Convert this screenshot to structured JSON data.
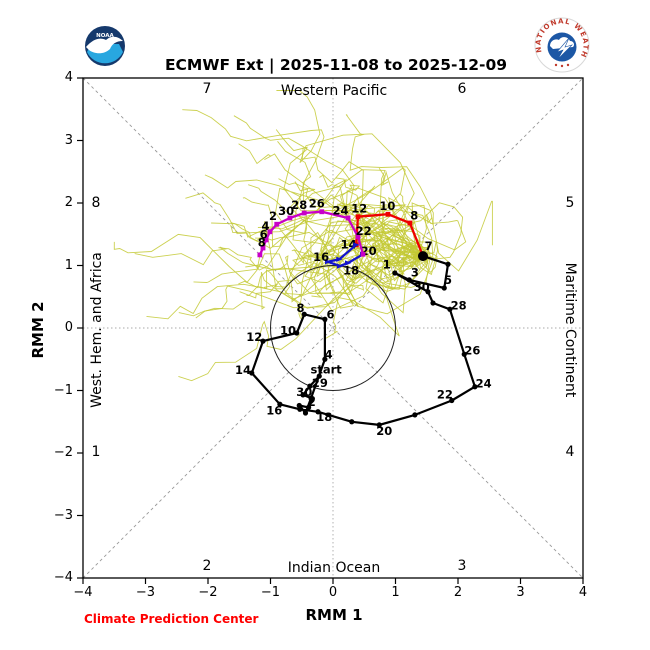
{
  "header": {
    "title": "ECMWF Ext | 2025-11-08 to 2025-12-09",
    "noaa_alt": "NOAA",
    "nws_text": "NATIONAL WEATHER SERVICE"
  },
  "footer": {
    "credit": "Climate Prediction Center",
    "credit_color": "#ff0000"
  },
  "regions": {
    "top": "Western Pacific",
    "bottom": "Indian Ocean",
    "left": "West. Hem. and Africa",
    "right": "Maritime Continent"
  },
  "phases": {
    "top_left": "7",
    "top_right": "6",
    "left_top": "8",
    "left_bottom": "1",
    "right_top": "5",
    "right_bottom": "4",
    "bottom_left": "2",
    "bottom_right": "3"
  },
  "chart_data": {
    "type": "line",
    "title": "ECMWF Ext | 2025-11-08 to 2025-12-09",
    "xlabel": "RMM 1",
    "ylabel": "RMM 2",
    "xlim": [
      -4,
      4
    ],
    "ylim": [
      -4,
      4
    ],
    "ticks": [
      -4,
      -3,
      -2,
      -1,
      0,
      1,
      2,
      3,
      4
    ],
    "unit_circle_radius": 1,
    "grid": "diagonal and zero dashed guides",
    "legend": "none",
    "annotations": [
      {
        "text": "start",
        "x": -0.11,
        "y": -0.66
      }
    ],
    "colors": {
      "observed": "#000000",
      "week1": "#ee0000",
      "week2": "#1414cc",
      "weeks3plus": "#c800c8",
      "ensemble": "#c3c934"
    },
    "series": [
      {
        "name": "observed",
        "color": "#000000",
        "marker": "dot",
        "width": 2.2,
        "points": [
          {
            "x": -0.22,
            "y": -0.77,
            "l": "29",
            "lx": -0.21,
            "ly": -0.88
          },
          {
            "x": -0.37,
            "y": -0.93
          },
          {
            "x": -0.48,
            "y": -1.07,
            "l": "30",
            "lx": -0.46,
            "ly": -1.02
          },
          {
            "x": -0.33,
            "y": -1.13
          },
          {
            "x": -0.39,
            "y": -1.27,
            "l": "2",
            "lx": -0.34,
            "ly": -1.18
          },
          {
            "x": -0.54,
            "y": -1.24
          },
          {
            "x": -0.44,
            "y": -1.36
          },
          {
            "x": -0.35,
            "y": -1.12
          },
          {
            "x": -0.13,
            "y": -0.5,
            "l": "4",
            "lx": -0.07,
            "ly": -0.42
          },
          {
            "x": -0.13,
            "y": 0.14,
            "l": "6",
            "lx": -0.04,
            "ly": 0.22
          },
          {
            "x": -0.46,
            "y": 0.22,
            "l": "8",
            "lx": -0.52,
            "ly": 0.32
          },
          {
            "x": -0.58,
            "y": -0.08,
            "l": "10",
            "lx": -0.72,
            "ly": -0.04
          },
          {
            "x": -1.12,
            "y": -0.21,
            "l": "12",
            "lx": -1.26,
            "ly": -0.14
          },
          {
            "x": -1.3,
            "y": -0.72,
            "l": "14",
            "lx": -1.44,
            "ly": -0.67
          },
          {
            "x": -0.85,
            "y": -1.22,
            "l": "16",
            "lx": -0.94,
            "ly": -1.32
          },
          {
            "x": -0.53,
            "y": -1.3
          },
          {
            "x": -0.24,
            "y": -1.34,
            "l": "18",
            "lx": -0.14,
            "ly": -1.42
          },
          {
            "x": 0.3,
            "y": -1.5
          },
          {
            "x": 0.74,
            "y": -1.55,
            "l": "20",
            "lx": 0.82,
            "ly": -1.65
          },
          {
            "x": 1.31,
            "y": -1.39
          },
          {
            "x": 1.9,
            "y": -1.16,
            "l": "22",
            "lx": 1.79,
            "ly": -1.06
          },
          {
            "x": 2.27,
            "y": -0.94,
            "l": "24",
            "lx": 2.41,
            "ly": -0.89
          },
          {
            "x": 2.1,
            "y": -0.42,
            "l": "26",
            "lx": 2.23,
            "ly": -0.36
          },
          {
            "x": 1.87,
            "y": 0.3,
            "l": "28",
            "lx": 2.01,
            "ly": 0.36
          },
          {
            "x": 1.6,
            "y": 0.4
          },
          {
            "x": 1.52,
            "y": 0.58,
            "l": "30",
            "lx": 1.42,
            "ly": 0.66
          },
          {
            "x": 0.99,
            "y": 0.88,
            "l": "1",
            "lx": 0.86,
            "ly": 1.02
          },
          {
            "x": 1.22,
            "y": 0.77,
            "l": "3",
            "lx": 1.31,
            "ly": 0.89
          },
          {
            "x": 1.78,
            "y": 0.64,
            "l": "5",
            "lx": 1.84,
            "ly": 0.77
          },
          {
            "x": 1.84,
            "y": 1.02
          },
          {
            "x": 1.44,
            "y": 1.15,
            "l": "7",
            "lx": 1.53,
            "ly": 1.31
          }
        ]
      },
      {
        "name": "forecast-week1",
        "color": "#ee0000",
        "marker": "square",
        "width": 2.3,
        "points": [
          {
            "x": 1.44,
            "y": 1.15
          },
          {
            "x": 1.23,
            "y": 1.68,
            "l": "8",
            "lx": 1.3,
            "ly": 1.8
          },
          {
            "x": 0.88,
            "y": 1.82,
            "l": "10",
            "lx": 0.87,
            "ly": 1.95
          },
          {
            "x": 0.4,
            "y": 1.78,
            "l": "12",
            "lx": 0.42,
            "ly": 1.91
          },
          {
            "x": 0.37,
            "y": 1.33,
            "l": "14",
            "lx": 0.25,
            "ly": 1.34
          }
        ]
      },
      {
        "name": "forecast-week2",
        "color": "#1414cc",
        "marker": "tri",
        "width": 2.3,
        "points": [
          {
            "x": 0.37,
            "y": 1.33
          },
          {
            "x": 0.1,
            "y": 1.1
          },
          {
            "x": -0.08,
            "y": 1.06,
            "l": "16",
            "lx": -0.19,
            "ly": 1.14
          },
          {
            "x": 0.11,
            "y": 0.99
          },
          {
            "x": 0.24,
            "y": 1.04,
            "l": "18",
            "lx": 0.29,
            "ly": 0.92
          },
          {
            "x": 0.48,
            "y": 1.18,
            "l": "20",
            "lx": 0.57,
            "ly": 1.23
          }
        ]
      },
      {
        "name": "forecast-weeks3-4",
        "color": "#c800c8",
        "marker": "square",
        "width": 2.3,
        "points": [
          {
            "x": 0.48,
            "y": 1.18
          },
          {
            "x": 0.4,
            "y": 1.46,
            "l": "22",
            "lx": 0.49,
            "ly": 1.55
          },
          {
            "x": 0.24,
            "y": 1.76,
            "l": "24",
            "lx": 0.12,
            "ly": 1.88
          },
          {
            "x": -0.18,
            "y": 1.86,
            "l": "26",
            "lx": -0.26,
            "ly": 1.99
          },
          {
            "x": -0.46,
            "y": 1.84,
            "l": "28",
            "lx": -0.54,
            "ly": 1.97
          },
          {
            "x": -0.69,
            "y": 1.76,
            "l": "30",
            "lx": -0.75,
            "ly": 1.87
          },
          {
            "x": -0.9,
            "y": 1.66,
            "l": "2",
            "lx": -0.96,
            "ly": 1.79
          },
          {
            "x": -1.01,
            "y": 1.54,
            "l": "4",
            "lx": -1.08,
            "ly": 1.63
          },
          {
            "x": -1.07,
            "y": 1.41,
            "l": "6",
            "lx": -1.11,
            "ly": 1.5
          },
          {
            "x": -1.12,
            "y": 1.28,
            "l": "8",
            "lx": -1.14,
            "ly": 1.37
          },
          {
            "x": -1.17,
            "y": 1.17
          }
        ]
      }
    ],
    "forecast_origin": {
      "x": 1.44,
      "y": 1.15
    },
    "ensemble": {
      "name": "ensemble-members",
      "color": "#c3c934",
      "count": 48,
      "steps": 20,
      "seed": 11,
      "start": [
        1.44,
        1.15
      ],
      "target": [
        -0.9,
        1.7
      ],
      "spread": [
        1.25,
        1.1
      ]
    }
  }
}
